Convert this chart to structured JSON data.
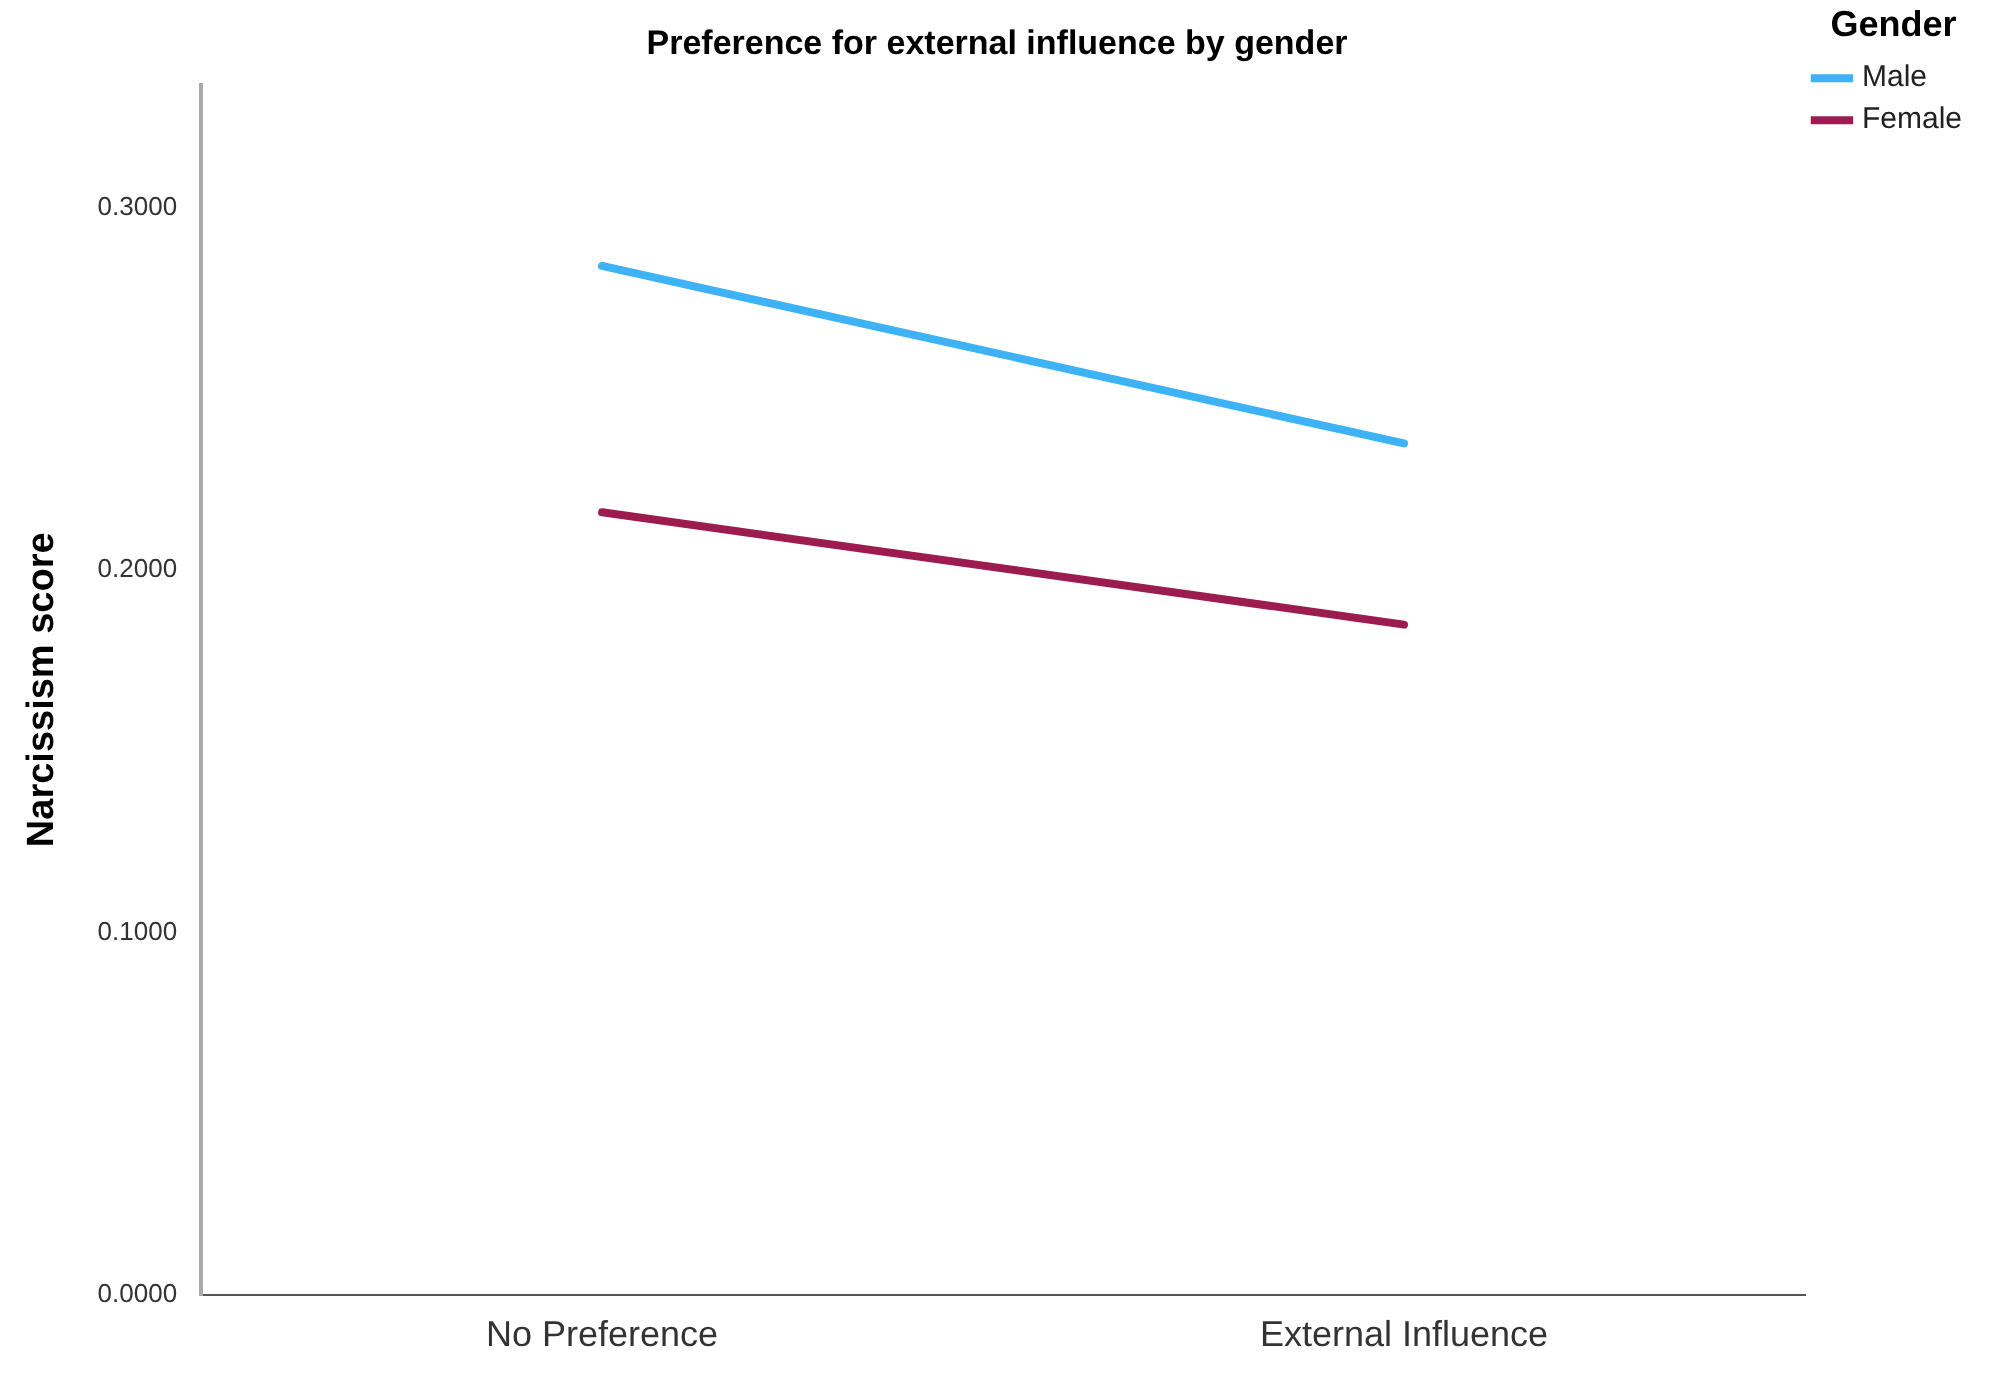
{
  "chart_data": {
    "type": "line",
    "title": "Preference for external influence by gender",
    "ylabel": "Narcissism score",
    "legend_title": "Gender",
    "categories": [
      "No Preference",
      "External Influence"
    ],
    "series": [
      {
        "name": "Male",
        "color": "#3db3f5",
        "values": [
          0.284,
          0.235
        ]
      },
      {
        "name": "Female",
        "color": "#9c1c50",
        "values": [
          0.216,
          0.185
        ]
      }
    ],
    "ylim": [
      0,
      0.334
    ],
    "yticks": [
      {
        "value": 0,
        "label": "0.0000"
      },
      {
        "value": 0.1,
        "label": "0.1000"
      },
      {
        "value": 0.2,
        "label": "0.2000"
      },
      {
        "value": 0.3,
        "label": "0.3000"
      }
    ],
    "grid": false,
    "legend": "top right",
    "marker": "none",
    "line_style": "solid"
  }
}
